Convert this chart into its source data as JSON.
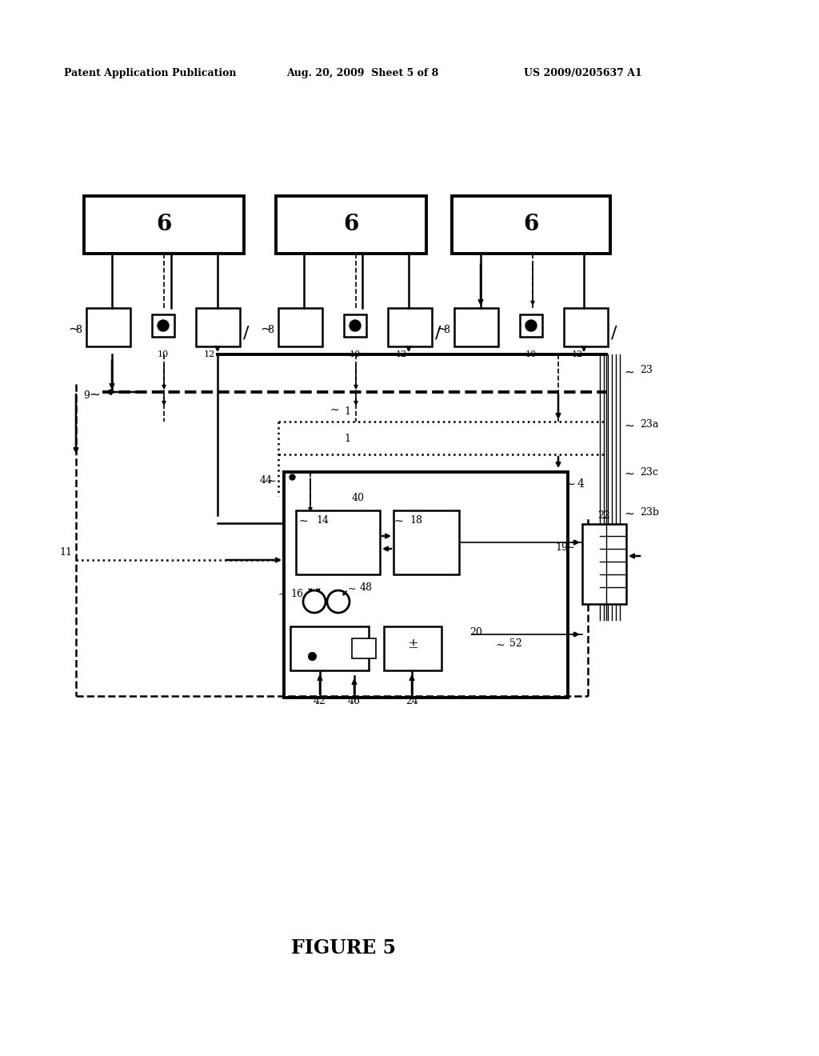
{
  "bg_color": "#ffffff",
  "header_left": "Patent Application Publication",
  "header_mid": "Aug. 20, 2009  Sheet 5 of 8",
  "header_right": "US 2009/0205637 A1",
  "figure_label": "FIGURE 5"
}
